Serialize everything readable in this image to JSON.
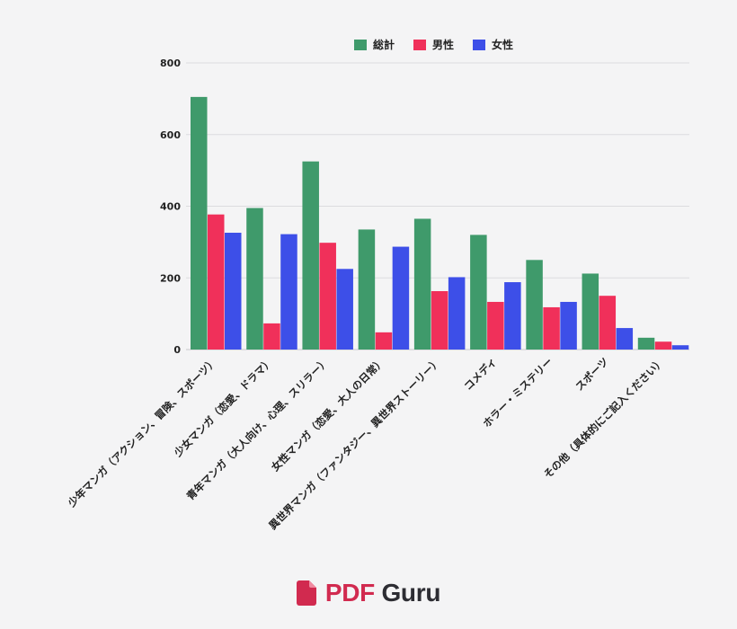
{
  "chart_data": {
    "type": "bar",
    "categories": [
      "少年マンガ（アクション、冒険、スポーツ）",
      "少女マンガ（恋愛、ドラマ）",
      "青年マンガ（大人向け、心理、スリラー）",
      "女性マンガ（恋愛、大人の日常）",
      "異世界マンガ（ファンタジー、異世界ストーリー）",
      "コメディ",
      "ホラー・ミステリー",
      "スポーツ",
      "その他（具体的にご記入ください）"
    ],
    "series": [
      {
        "name": "総計",
        "color": "#3f9a6b",
        "values": [
          705,
          395,
          525,
          335,
          365,
          320,
          250,
          212,
          33
        ]
      },
      {
        "name": "男性",
        "color": "#f0305a",
        "values": [
          377,
          73,
          298,
          48,
          163,
          133,
          118,
          150,
          22
        ]
      },
      {
        "name": "女性",
        "color": "#3d4fe8",
        "values": [
          326,
          322,
          225,
          287,
          202,
          188,
          133,
          60,
          12
        ]
      }
    ],
    "ylim": [
      0,
      800
    ],
    "yticks": [
      0,
      200,
      400,
      600,
      800
    ],
    "legend_position": "top-center",
    "grid": true
  },
  "brand": {
    "pdf": "PDF",
    "guru": "Guru"
  },
  "colors": {
    "brand_red": "#d12a4f",
    "brand_dark": "#2d2d33",
    "background": "#f4f4f5"
  }
}
